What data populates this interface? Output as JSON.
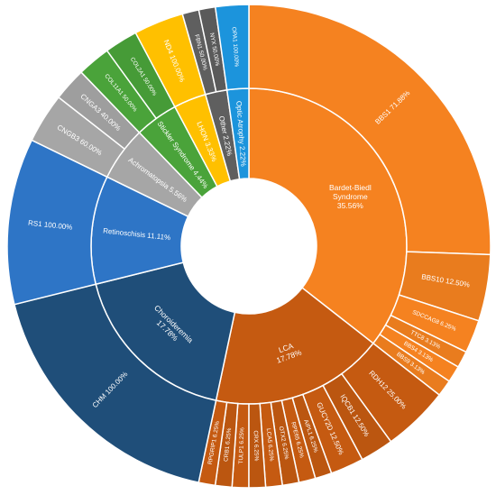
{
  "chart_data": {
    "type": "sunburst",
    "title": "",
    "start_angle_deg": 0,
    "inner_ring": [
      {
        "name": "Bardet-Biedl Syndrome",
        "percent": 35.56,
        "label": "Bardet-Biedl Syndrome 35.56%",
        "color": "#f58220"
      },
      {
        "name": "LCA",
        "percent": 17.78,
        "label": "LCA 17.78%",
        "color": "#c55a11"
      },
      {
        "name": "Choroideremia",
        "percent": 17.78,
        "label": "Choroideremia 17.78%",
        "color": "#1f4e79"
      },
      {
        "name": "Retinoschisis",
        "percent": 11.11,
        "label": "Retinoschisis 11.11%",
        "color": "#2e75c6"
      },
      {
        "name": "Achromatopsia",
        "percent": 5.56,
        "label": "Achromatopsia 5.56%",
        "color": "#a6a6a6"
      },
      {
        "name": "Stickler Syndrome",
        "percent": 4.44,
        "label": "Stickler Syndrome 4.44%",
        "color": "#4aa33a"
      },
      {
        "name": "LHON",
        "percent": 3.33,
        "label": "LHON 3.33%",
        "color": "#ffc000"
      },
      {
        "name": "Other",
        "percent": 2.22,
        "label": "Other 2.22%",
        "color": "#5f5f5f"
      },
      {
        "name": "Optic Atrophy",
        "percent": 2.22,
        "label": "Optic Atrophy 2.22%",
        "color": "#1c94dc"
      }
    ],
    "outer_ring": [
      {
        "parent": "Bardet-Biedl Syndrome",
        "items": [
          {
            "name": "BBS1",
            "percent": 71.88,
            "label": "BBS1 71.88%"
          },
          {
            "name": "BBS10",
            "percent": 12.5,
            "label": "BBS10 12.50%"
          },
          {
            "name": "SDCCAG8",
            "percent": 6.25,
            "label": "SDCCAG8 6.25%"
          },
          {
            "name": "TTC8",
            "percent": 3.13,
            "label": "TTC8 3.13%"
          },
          {
            "name": "BBS4",
            "percent": 3.13,
            "label": "BBS4 3.13%"
          },
          {
            "name": "BBS9",
            "percent": 3.13,
            "label": "BBS9 3.13%"
          }
        ]
      },
      {
        "parent": "LCA",
        "items": [
          {
            "name": "RDH12",
            "percent": 25.0,
            "label": "RDH12 25.00%"
          },
          {
            "name": "IQCB1",
            "percent": 12.5,
            "label": "IQCB1 12.50%"
          },
          {
            "name": "GUCY2D",
            "percent": 12.5,
            "label": "GUCY2D 12.50%"
          },
          {
            "name": "AIPL1",
            "percent": 6.25,
            "label": "AIPL1 6.25%"
          },
          {
            "name": "RPE65",
            "percent": 6.25,
            "label": "RPE65 6.25%"
          },
          {
            "name": "OTX2",
            "percent": 6.25,
            "label": "OTX2 6.25%"
          },
          {
            "name": "LCA5",
            "percent": 6.25,
            "label": "LCA5 6.25%"
          },
          {
            "name": "CRX",
            "percent": 6.25,
            "label": "CRX 6.25%"
          },
          {
            "name": "TULP1",
            "percent": 6.25,
            "label": "TULP1 6.25%"
          },
          {
            "name": "CRB1",
            "percent": 6.25,
            "label": "CRB1 6.25%"
          },
          {
            "name": "RPGRIP1",
            "percent": 6.25,
            "label": "RPGRIP1 6.25%"
          }
        ]
      },
      {
        "parent": "Choroideremia",
        "items": [
          {
            "name": "CHM",
            "percent": 100.0,
            "label": "CHM 100.00%"
          }
        ]
      },
      {
        "parent": "Retinoschisis",
        "items": [
          {
            "name": "RS1",
            "percent": 100.0,
            "label": "RS1 100.00%"
          }
        ]
      },
      {
        "parent": "Achromatopsia",
        "items": [
          {
            "name": "CNGB3",
            "percent": 60.0,
            "label": "CNGB3 60.00%"
          },
          {
            "name": "CNGA3",
            "percent": 40.0,
            "label": "CNGA3 40.00%"
          }
        ]
      },
      {
        "parent": "Stickler Syndrome",
        "items": [
          {
            "name": "COL11A1",
            "percent": 50.0,
            "label": "COL11A1 50.00%"
          },
          {
            "name": "COL2A1",
            "percent": 50.0,
            "label": "COL2A1 50.00%"
          }
        ]
      },
      {
        "parent": "LHON",
        "items": [
          {
            "name": "ND4",
            "percent": 100.0,
            "label": "ND4 100.00%"
          }
        ]
      },
      {
        "parent": "Other",
        "items": [
          {
            "name": "FBN1",
            "percent": 50.0,
            "label": "FBN1 50.00%"
          },
          {
            "name": "NYX",
            "percent": 50.0,
            "label": "NYX 50.00%"
          }
        ]
      },
      {
        "parent": "Optic Atrophy",
        "items": [
          {
            "name": "OPA1",
            "percent": 100.0,
            "label": "OPA1 100.00%"
          }
        ]
      }
    ]
  }
}
